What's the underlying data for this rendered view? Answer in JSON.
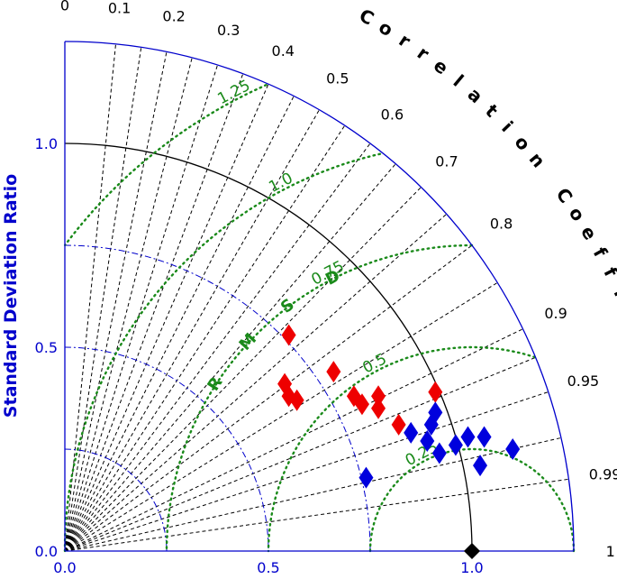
{
  "chart_data": {
    "type": "scatter",
    "subtype": "taylor-diagram",
    "ylabel": "Standard Deviation Ratio",
    "corr_title": "Correlation Coefficient",
    "rmsd_title": "RMSD",
    "sd_max": 1.25,
    "sd_ticks": [
      {
        "value": 0.0,
        "label": "0.0"
      },
      {
        "value": 0.5,
        "label": "0.5"
      },
      {
        "value": 1.0,
        "label": "1.0"
      }
    ],
    "corr_ticks": [
      {
        "value": 0.0,
        "label": "0"
      },
      {
        "value": 0.1,
        "label": "0.1"
      },
      {
        "value": 0.2,
        "label": "0.2"
      },
      {
        "value": 0.3,
        "label": "0.3"
      },
      {
        "value": 0.4,
        "label": "0.4"
      },
      {
        "value": 0.5,
        "label": "0.5"
      },
      {
        "value": 0.6,
        "label": "0.6"
      },
      {
        "value": 0.7,
        "label": "0.7"
      },
      {
        "value": 0.8,
        "label": "0.8"
      },
      {
        "value": 0.9,
        "label": "0.9"
      },
      {
        "value": 0.95,
        "label": "0.95"
      },
      {
        "value": 0.99,
        "label": "0.99"
      },
      {
        "value": 1.0,
        "label": "1"
      }
    ],
    "extra_corr_lines": [
      0.15,
      0.25,
      0.35,
      0.45,
      0.55,
      0.65,
      0.75,
      0.85,
      0.925,
      0.975
    ],
    "std_arcs": [
      0.25,
      0.5,
      0.75
    ],
    "rmsd_arcs": [
      {
        "value": 0.25,
        "label": "0.25"
      },
      {
        "value": 0.5,
        "label": "0.5"
      },
      {
        "value": 0.75,
        "label": "0.75"
      },
      {
        "value": 1.0,
        "label": "1.0"
      },
      {
        "value": 1.25,
        "label": "1.25"
      }
    ],
    "reference": {
      "x": 1.0,
      "y": 0.0
    },
    "grid": true,
    "colors": {
      "axis": "#0000cc",
      "rmsd": "#1a8a1a",
      "series_red": "#ee0000",
      "series_blue": "#0000dd",
      "reference": "#000000"
    },
    "series": [
      {
        "color": "red",
        "points": [
          {
            "x": 0.55,
            "y": 0.53
          },
          {
            "x": 0.54,
            "y": 0.41
          },
          {
            "x": 0.55,
            "y": 0.38
          },
          {
            "x": 0.57,
            "y": 0.37
          },
          {
            "x": 0.66,
            "y": 0.44
          },
          {
            "x": 0.71,
            "y": 0.38
          },
          {
            "x": 0.73,
            "y": 0.36
          },
          {
            "x": 0.77,
            "y": 0.38
          },
          {
            "x": 0.77,
            "y": 0.35
          },
          {
            "x": 0.82,
            "y": 0.31
          },
          {
            "x": 0.91,
            "y": 0.39
          }
        ]
      },
      {
        "color": "blue",
        "points": [
          {
            "x": 0.74,
            "y": 0.18
          },
          {
            "x": 0.85,
            "y": 0.29
          },
          {
            "x": 0.89,
            "y": 0.27
          },
          {
            "x": 0.9,
            "y": 0.31
          },
          {
            "x": 0.91,
            "y": 0.34
          },
          {
            "x": 0.92,
            "y": 0.24
          },
          {
            "x": 0.96,
            "y": 0.26
          },
          {
            "x": 0.99,
            "y": 0.28
          },
          {
            "x": 1.02,
            "y": 0.21
          },
          {
            "x": 1.03,
            "y": 0.28
          },
          {
            "x": 1.1,
            "y": 0.25
          }
        ]
      }
    ]
  }
}
